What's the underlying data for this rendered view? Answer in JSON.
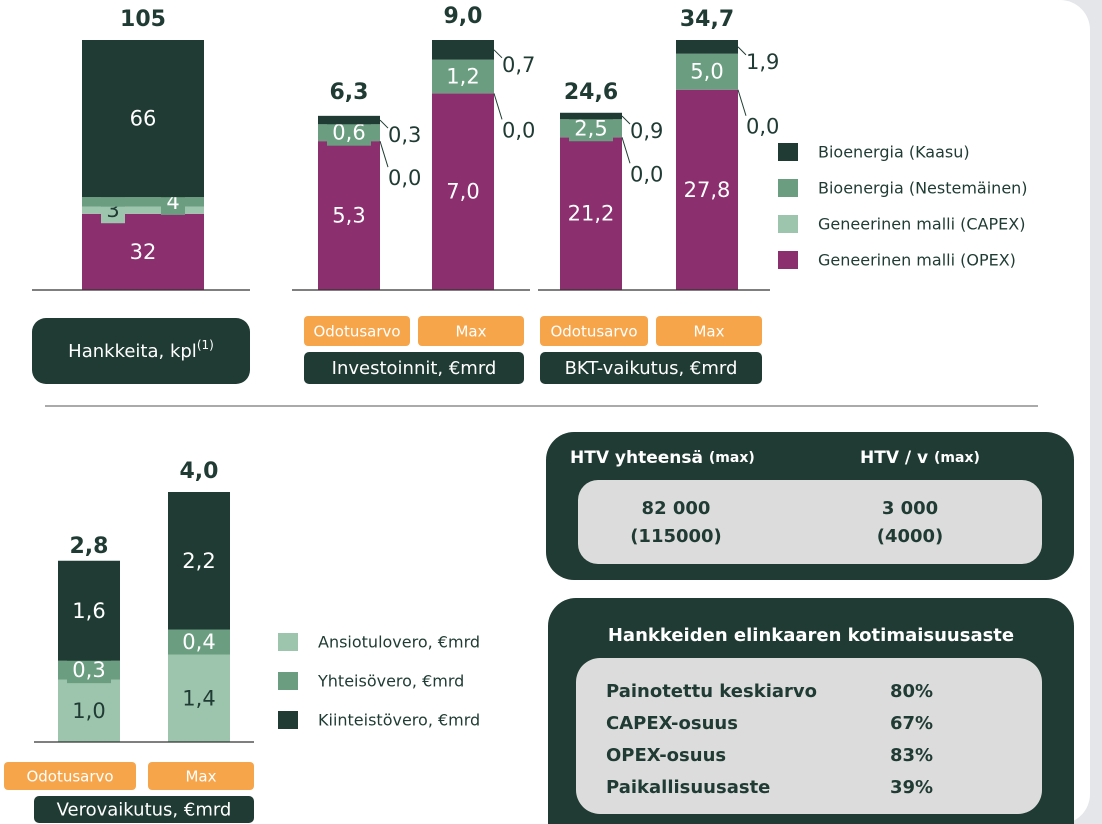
{
  "chart_data": [
    {
      "type": "bar",
      "stacked": true,
      "title": "Hankkeita, kpl",
      "title_note": "(1)",
      "categories": [
        null
      ],
      "series": [
        {
          "name": "Geneerinen malli (OPEX)",
          "color": "#8b2f6f",
          "values": [
            32
          ]
        },
        {
          "name": "Geneerinen malli (CAPEX)",
          "color": "#9dc4ac",
          "values": [
            3
          ]
        },
        {
          "name": "Bioenergia (Nestemäinen)",
          "color": "#6b9e80",
          "values": [
            4
          ]
        },
        {
          "name": "Bioenergia (Kaasu)",
          "color": "#1f3b33",
          "values": [
            66
          ]
        }
      ],
      "totals": [
        105
      ]
    },
    {
      "type": "bar",
      "stacked": true,
      "title": "Investoinnit, €mrd",
      "categories": [
        "Odotusarvo",
        "Max"
      ],
      "series": [
        {
          "color": "#8b2f6f",
          "values": [
            5.3,
            7.0
          ],
          "value_labels": [
            "5,3",
            "7,0"
          ]
        },
        {
          "color": "#9dc4ac",
          "values": [
            0.0,
            0.0
          ],
          "value_labels": [
            "0,0",
            "0,0"
          ]
        },
        {
          "color": "#6b9e80",
          "values": [
            0.6,
            1.2
          ],
          "value_labels": [
            "0,6",
            "1,2"
          ]
        },
        {
          "color": "#1f3b33",
          "values": [
            0.3,
            0.7
          ],
          "value_labels": [
            "0,3",
            "0,7"
          ]
        }
      ],
      "totals": [
        6.3,
        9.0
      ],
      "total_labels": [
        "6,3",
        "9,0"
      ]
    },
    {
      "type": "bar",
      "stacked": true,
      "title": "BKT-vaikutus, €mrd",
      "categories": [
        "Odotusarvo",
        "Max"
      ],
      "series": [
        {
          "color": "#8b2f6f",
          "values": [
            21.2,
            27.8
          ],
          "value_labels": [
            "21,2",
            "27,8"
          ]
        },
        {
          "color": "#9dc4ac",
          "values": [
            0.0,
            0.0
          ],
          "value_labels": [
            "0,0",
            "0,0"
          ]
        },
        {
          "color": "#6b9e80",
          "values": [
            2.5,
            5.0
          ],
          "value_labels": [
            "2,5",
            "5,0"
          ]
        },
        {
          "color": "#1f3b33",
          "values": [
            0.9,
            1.9
          ],
          "value_labels": [
            "0,9",
            "1,9"
          ]
        }
      ],
      "totals": [
        24.6,
        34.7
      ],
      "total_labels": [
        "24,6",
        "34,7"
      ]
    },
    {
      "type": "bar",
      "stacked": true,
      "title": "Verovaikutus, €mrd",
      "categories": [
        "Odotusarvo",
        "Max"
      ],
      "series": [
        {
          "name": "Ansiotulovero, €mrd",
          "color": "#9dc4ac",
          "values": [
            1.0,
            1.4
          ],
          "value_labels": [
            "1,0",
            "1,4"
          ]
        },
        {
          "name": "Yhteisövero, €mrd",
          "color": "#6b9e80",
          "values": [
            0.3,
            0.4
          ],
          "value_labels": [
            "0,3",
            "0,4"
          ]
        },
        {
          "name": "Kiinteistövero, €mrd",
          "color": "#1f3b33",
          "values": [
            1.6,
            2.2
          ],
          "value_labels": [
            "1,6",
            "2,2"
          ]
        }
      ],
      "totals": [
        2.8,
        4.0
      ],
      "total_labels": [
        "2,8",
        "4,0"
      ]
    }
  ],
  "htv": {
    "columns": [
      {
        "label": "HTV yhteensä",
        "note": "(max)",
        "value": "82 000",
        "max": "(115000)"
      },
      {
        "label": "HTV / v",
        "note": "(max)",
        "value": "3 000",
        "max": "(4000)"
      }
    ]
  },
  "kotimaisuusaste": {
    "title": "Hankkeiden elinkaaren kotimaisuusaste",
    "rows": [
      [
        "Painotettu keskiarvo",
        "80%"
      ],
      [
        "CAPEX-osuus",
        "67%"
      ],
      [
        "OPEX-osuus",
        "83%"
      ],
      [
        "Paikallisuusaste",
        "39%"
      ]
    ]
  }
}
